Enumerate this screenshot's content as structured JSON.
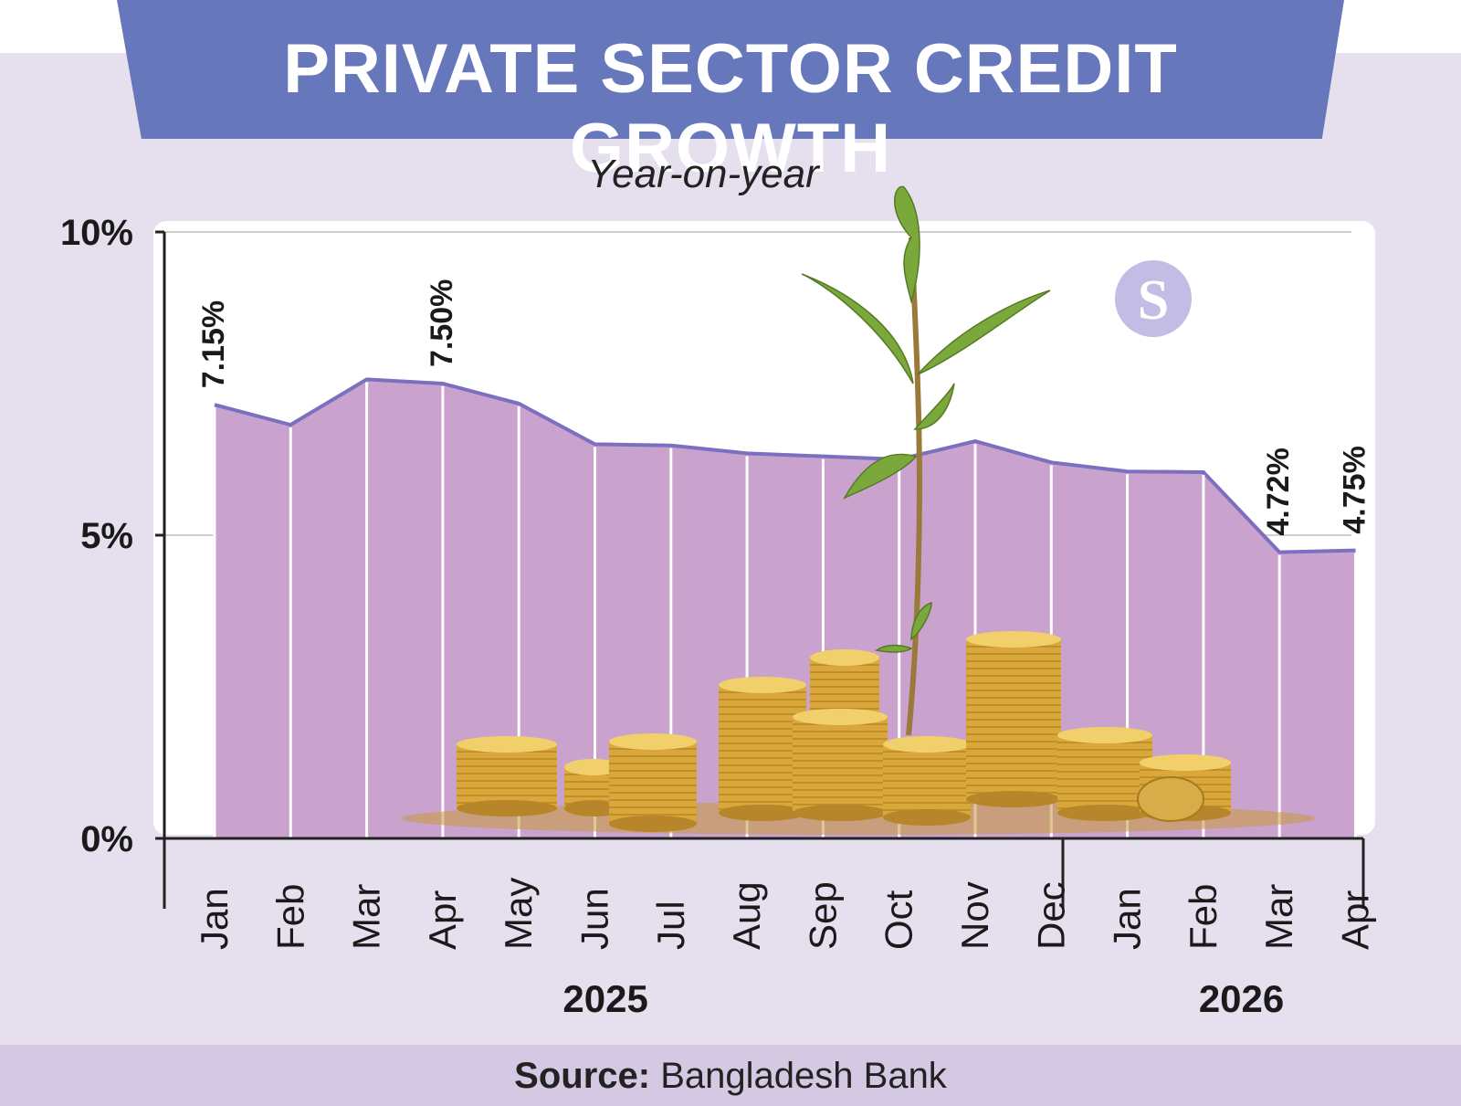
{
  "header": {
    "title": "PRIVATE SECTOR CREDIT GROWTH",
    "subtitle": "Year-on-year"
  },
  "source": {
    "label": "Source:",
    "text": "Bangladesh Bank"
  },
  "logo": {
    "text": "S"
  },
  "colors": {
    "area_fill": "#c9a2ce",
    "area_line": "#7b6fc0",
    "banner": "#6677bb",
    "background": "#e6e0ee",
    "plot_background": "#ffffff",
    "footer": "#d4c8e2"
  },
  "chart_data": {
    "type": "area",
    "title": "PRIVATE SECTOR CREDIT GROWTH",
    "subtitle": "Year-on-year",
    "categories": [
      "Jan",
      "Feb",
      "Mar",
      "Apr",
      "May",
      "Jun",
      "Jul",
      "Aug",
      "Sep",
      "Oct",
      "Nov",
      "Dec",
      "Jan",
      "Feb",
      "Mar",
      "Apr"
    ],
    "x_groups": [
      {
        "label": "2025",
        "start": 0,
        "end": 11
      },
      {
        "label": "2026",
        "start": 12,
        "end": 15
      }
    ],
    "values": [
      7.15,
      6.82,
      7.57,
      7.5,
      7.17,
      6.5,
      6.48,
      6.35,
      6.3,
      6.25,
      6.55,
      6.2,
      6.05,
      6.04,
      4.72,
      4.75
    ],
    "data_labels": [
      {
        "index": 0,
        "text": "7.15%"
      },
      {
        "index": 3,
        "text": "7.50%"
      },
      {
        "index": 14,
        "text": "4.72%"
      },
      {
        "index": 15,
        "text": "4.75%"
      }
    ],
    "y_ticks": [
      0,
      5,
      10
    ],
    "y_tick_labels": [
      "0%",
      "5%",
      "10%"
    ],
    "ylim": [
      0,
      10
    ],
    "grid": true,
    "source": "Bangladesh Bank"
  }
}
